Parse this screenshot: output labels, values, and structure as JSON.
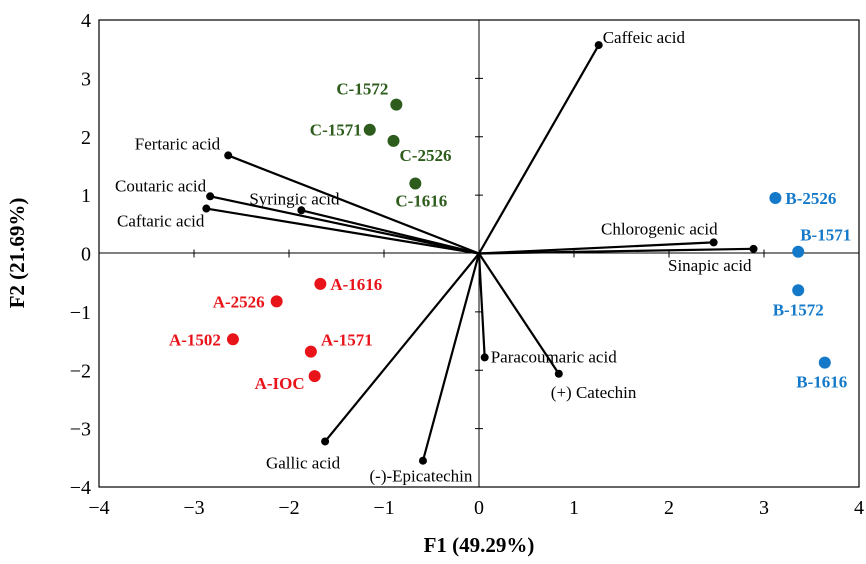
{
  "chart_data": {
    "type": "scatter",
    "title": "",
    "xlabel": "F1 (49.29%)",
    "ylabel": "F2 (21.69%)",
    "xlim": [
      -4,
      4
    ],
    "ylim": [
      -4,
      4
    ],
    "x_ticks": [
      "−4",
      "−3",
      "−2",
      "−1",
      "0",
      "1",
      "2",
      "3",
      "4"
    ],
    "y_ticks": [
      "4",
      "3",
      "2",
      "1",
      "0",
      "−1",
      "−2",
      "−3",
      "−4"
    ],
    "colors": {
      "A": "#e8141a",
      "B": "#1479c8",
      "C": "#2d5c1c",
      "vector": "#000000"
    },
    "variables": [
      {
        "label": "Caffeic acid",
        "x": 1.26,
        "y": 3.57
      },
      {
        "label": "Fertaric acid",
        "x": -2.64,
        "y": 1.68
      },
      {
        "label": "Coutaric acid",
        "x": -2.83,
        "y": 0.98
      },
      {
        "label": "Caftaric acid",
        "x": -2.87,
        "y": 0.77
      },
      {
        "label": "Syringic acid",
        "x": -1.87,
        "y": 0.74
      },
      {
        "label": "Chlorogenic acid",
        "x": 2.47,
        "y": 0.19
      },
      {
        "label": "Sinapic acid",
        "x": 2.89,
        "y": 0.08
      },
      {
        "label": "Paracoumaric acid",
        "x": 0.06,
        "y": -1.78
      },
      {
        "label": "(+) Catechin",
        "x": 0.84,
        "y": -2.06
      },
      {
        "label": "Gallic acid",
        "x": -1.62,
        "y": -3.22
      },
      {
        "label": "(-)-Epicatechin",
        "x": -0.59,
        "y": -3.55
      }
    ],
    "observations": [
      {
        "label": "C-1572",
        "x": -0.87,
        "y": 2.55,
        "group": "C"
      },
      {
        "label": "C-1571",
        "x": -1.15,
        "y": 2.12,
        "group": "C"
      },
      {
        "label": "C-2526",
        "x": -0.9,
        "y": 1.93,
        "group": "C"
      },
      {
        "label": "C-1616",
        "x": -0.67,
        "y": 1.2,
        "group": "C"
      },
      {
        "label": "B-2526",
        "x": 3.12,
        "y": 0.95,
        "group": "B"
      },
      {
        "label": "B-1571",
        "x": 3.36,
        "y": 0.03,
        "group": "B"
      },
      {
        "label": "B-1572",
        "x": 3.36,
        "y": -0.63,
        "group": "B"
      },
      {
        "label": "B-1616",
        "x": 3.64,
        "y": -1.87,
        "group": "B"
      },
      {
        "label": "A-1616",
        "x": -1.67,
        "y": -0.52,
        "group": "A"
      },
      {
        "label": "A-2526",
        "x": -2.13,
        "y": -0.82,
        "group": "A"
      },
      {
        "label": "A-1502",
        "x": -2.59,
        "y": -1.47,
        "group": "A"
      },
      {
        "label": "A-1571",
        "x": -1.77,
        "y": -1.68,
        "group": "A"
      },
      {
        "label": "A-IOC",
        "x": -1.73,
        "y": -2.1,
        "group": "A"
      }
    ]
  }
}
